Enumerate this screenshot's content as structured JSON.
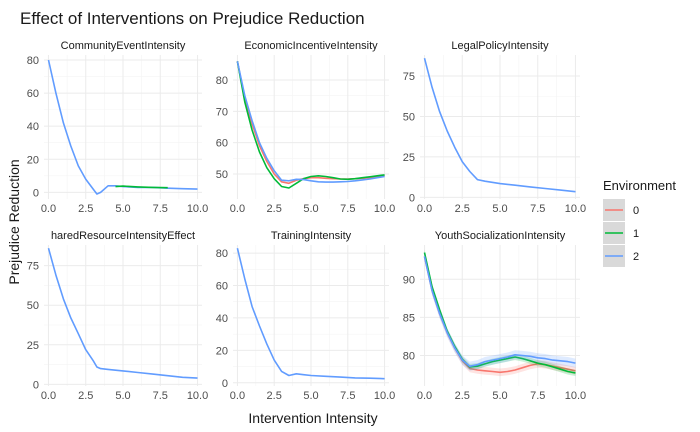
{
  "chart_data": {
    "type": "line",
    "title": "Effect of Interventions on Prejudice Reduction",
    "xlabel": "Intervention Intensity",
    "ylabel": "Prejudice Reduction",
    "legend": {
      "title": "Environment",
      "placement": "right",
      "entries": [
        {
          "label": "0",
          "color": "#F8766D"
        },
        {
          "label": "1",
          "color": "#00BA38"
        },
        {
          "label": "2",
          "color": "#619CFF"
        }
      ]
    },
    "grid": true,
    "x_ticks": [
      0,
      2.5,
      5,
      7.5,
      10
    ],
    "x_tick_labels": [
      "0.0",
      "2.5",
      "5.0",
      "7.5",
      "10.0"
    ],
    "panels": [
      {
        "name": "CommunityEventIntensity",
        "xlim": [
          -0.3,
          10.3
        ],
        "ylim": [
          -4,
          83
        ],
        "y_ticks": [
          0,
          20,
          40,
          60,
          80
        ],
        "series": [
          {
            "name": "2",
            "color": "#619CFF",
            "x": [
              0,
              0.5,
              1,
              1.5,
              2,
              2.5,
              3,
              3.25,
              3.5,
              4,
              4.5,
              5,
              6,
              7,
              8,
              9,
              10
            ],
            "y": [
              80,
              60,
              42,
              28,
              16,
              8,
              2,
              -1,
              0,
              4,
              4,
              3.5,
              3,
              3,
              2.5,
              2.2,
              2
            ]
          },
          {
            "name": "1",
            "color": "#00BA38",
            "x": [
              4.5,
              5,
              6,
              7,
              8
            ],
            "y": [
              3.5,
              3.8,
              3.3,
              3,
              2.8
            ]
          }
        ]
      },
      {
        "name": "EconomicIncentiveIntensity",
        "xlim": [
          -0.3,
          10.3
        ],
        "ylim": [
          42,
          88
        ],
        "y_ticks": [
          50,
          60,
          70,
          80
        ],
        "series": [
          {
            "name": "0",
            "color": "#F8766D",
            "x": [
              0,
              0.5,
              1,
              1.5,
              2,
              2.5,
              3,
              3.5,
              4,
              4.5,
              5,
              5.5,
              6,
              6.5,
              7,
              7.5,
              8,
              8.5,
              9,
              9.5,
              10
            ],
            "y": [
              86,
              74,
              66,
              59,
              54,
              50,
              47.5,
              47,
              48,
              48.5,
              48.8,
              48.8,
              48.6,
              48.5,
              48.4,
              48.4,
              48.5,
              48.6,
              48.8,
              49.2,
              49.5
            ]
          },
          {
            "name": "1",
            "color": "#00BA38",
            "x": [
              0,
              0.5,
              1,
              1.5,
              2,
              2.5,
              3,
              3.5,
              4,
              4.5,
              5,
              5.5,
              6,
              6.5,
              7,
              7.5,
              8,
              8.5,
              9,
              9.5,
              10
            ],
            "y": [
              86,
              73,
              64,
              57,
              52,
              48.5,
              46,
              45.5,
              47,
              48.5,
              49.2,
              49.4,
              49.2,
              48.8,
              48.4,
              48.3,
              48.5,
              48.8,
              49.1,
              49.4,
              49.7
            ]
          },
          {
            "name": "2",
            "color": "#619CFF",
            "x": [
              0,
              0.5,
              1,
              1.5,
              2,
              2.5,
              3,
              3.5,
              4,
              4.5,
              5,
              5.5,
              6,
              6.5,
              7,
              7.5,
              8,
              8.5,
              9,
              9.5,
              10
            ],
            "y": [
              86,
              75,
              67,
              60,
              55,
              51,
              48,
              47.8,
              48.3,
              48.2,
              47.8,
              47.5,
              47.4,
              47.4,
              47.5,
              47.6,
              47.8,
              48.1,
              48.4,
              48.8,
              49.2
            ]
          }
        ]
      },
      {
        "name": "LegalPolicyIntensity",
        "xlim": [
          -0.3,
          10.3
        ],
        "ylim": [
          -1,
          88
        ],
        "y_ticks": [
          0,
          25,
          50,
          75
        ],
        "series": [
          {
            "name": "2",
            "color": "#619CFF",
            "x": [
              0,
              0.5,
              1,
              1.5,
              2,
              2.5,
              3,
              3.5,
              4,
              5,
              6,
              7,
              8,
              9,
              10
            ],
            "y": [
              86,
              68,
              53,
              41,
              31,
              22,
              16,
              11,
              10,
              8.5,
              7.5,
              6.5,
              5.5,
              4.5,
              3.5
            ]
          }
        ]
      },
      {
        "name": "haredResourceIntensityEffect",
        "xlim": [
          -0.3,
          10.3
        ],
        "ylim": [
          -1,
          88
        ],
        "y_ticks": [
          0,
          25,
          50,
          75
        ],
        "series": [
          {
            "name": "2",
            "color": "#619CFF",
            "x": [
              0,
              0.5,
              1,
              1.5,
              2,
              2.5,
              3,
              3.25,
              3.5,
              4,
              5,
              6,
              7,
              8,
              9,
              10
            ],
            "y": [
              86,
              69,
              54,
              42,
              32,
              22,
              15,
              11,
              10,
              9.5,
              8.5,
              7.5,
              6.5,
              5.5,
              4.5,
              4
            ]
          }
        ]
      },
      {
        "name": "TrainingIntensity",
        "xlim": [
          -0.3,
          10.3
        ],
        "ylim": [
          -2,
          85
        ],
        "y_ticks": [
          0,
          20,
          40,
          60,
          80
        ],
        "series": [
          {
            "name": "2",
            "color": "#619CFF",
            "x": [
              0,
              0.5,
              1,
              1.5,
              2,
              2.5,
              3,
              3.5,
              4,
              4.5,
              5,
              6,
              7,
              8,
              9,
              10
            ],
            "y": [
              83,
              64,
              47,
              35,
              24,
              14,
              7,
              4.5,
              5.5,
              5,
              4.5,
              4,
              3.5,
              3,
              2.8,
              2.5
            ]
          }
        ]
      },
      {
        "name": "YouthSocializationIntensity",
        "xlim": [
          -0.3,
          10.3
        ],
        "ylim": [
          76,
          94.5
        ],
        "y_ticks": [
          80,
          85,
          90
        ],
        "series": [
          {
            "name": "0",
            "color": "#F8766D",
            "band": 0.5,
            "x": [
              0,
              0.5,
              1,
              1.5,
              2,
              2.5,
              3,
              3.5,
              4,
              4.5,
              5,
              5.5,
              6,
              6.5,
              7,
              7.5,
              8,
              8.5,
              9,
              9.5,
              10
            ],
            "y": [
              93,
              88.5,
              85.5,
              83,
              81,
              79.3,
              78.3,
              78.1,
              78,
              77.9,
              77.8,
              77.9,
              78.1,
              78.4,
              78.7,
              78.9,
              78.8,
              78.6,
              78.4,
              78.2,
              78
            ]
          },
          {
            "name": "1",
            "color": "#00BA38",
            "band": 0.4,
            "x": [
              0,
              0.5,
              1,
              1.5,
              2,
              2.5,
              3,
              3.5,
              4,
              4.5,
              5,
              5.5,
              6,
              6.5,
              7,
              7.5,
              8,
              8.5,
              9,
              9.5,
              10
            ],
            "y": [
              93.5,
              89,
              86,
              83.2,
              81.2,
              79.5,
              78.5,
              78.6,
              78.9,
              79.2,
              79.4,
              79.6,
              79.8,
              79.6,
              79.3,
              79,
              78.8,
              78.5,
              78.2,
              77.9,
              77.7
            ]
          },
          {
            "name": "2",
            "color": "#619CFF",
            "band": 0.6,
            "x": [
              0,
              0.5,
              1,
              1.5,
              2,
              2.5,
              3,
              3.5,
              4,
              4.5,
              5,
              5.5,
              6,
              6.5,
              7,
              7.5,
              8,
              8.5,
              9,
              9.5,
              10
            ],
            "y": [
              93,
              88.5,
              85.5,
              83,
              81,
              79.4,
              78.6,
              78.8,
              79.2,
              79.4,
              79.6,
              79.8,
              80.1,
              80,
              79.9,
              79.7,
              79.6,
              79.4,
              79.3,
              79.2,
              79
            ]
          }
        ]
      }
    ]
  }
}
